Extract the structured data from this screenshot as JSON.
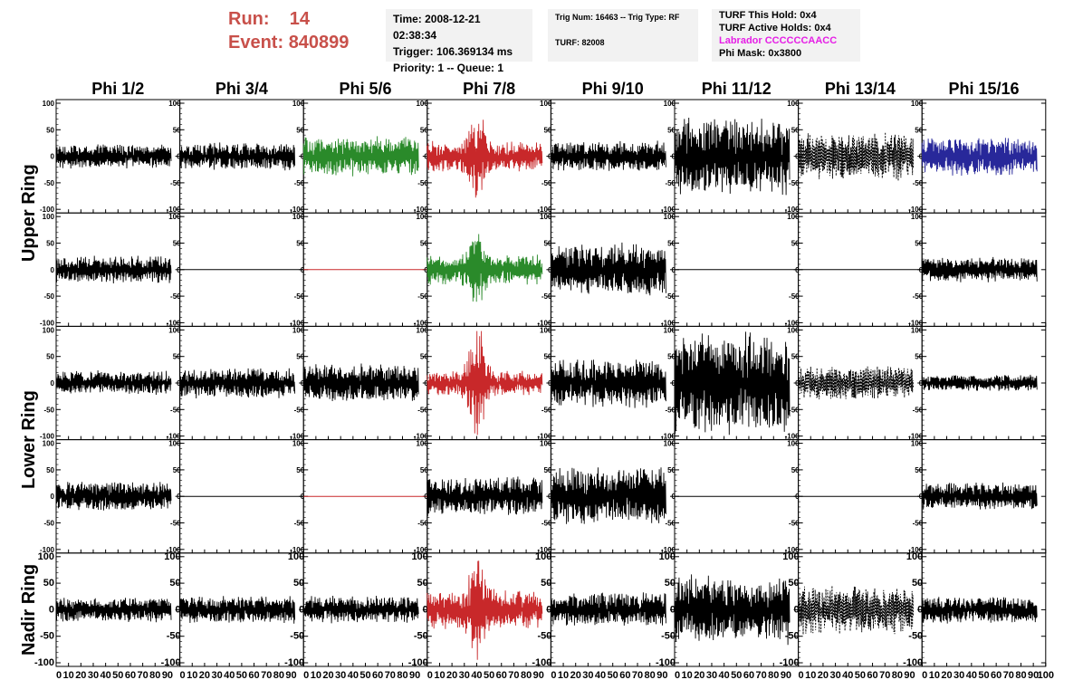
{
  "header": {
    "run_label": "Run:",
    "run_value": "14",
    "event_label": "Event:",
    "event_value": "840899",
    "time_line": "Time: 2008-12-21 02:38:34",
    "trigger_line": "Trigger: 106.369134 ms",
    "priority_line": "Priority: 1 -- Queue: 1",
    "trig_num_line": "Trig Num: 16463 -- Trig Type: RF",
    "turf_line": "TURF: 82008",
    "turf_hold_line": "TURF This Hold: 0x4",
    "turf_active_line": "TURF Active Holds: 0x4",
    "labrador_line": "Labrador CCCCCCAACC",
    "phi_mask_line": "Phi Mask: 0x3800"
  },
  "chart_data": {
    "type": "line",
    "columns": [
      "Phi 1/2",
      "Phi 3/4",
      "Phi 5/6",
      "Phi 7/8",
      "Phi 9/10",
      "Phi 11/12",
      "Phi 13/14",
      "Phi 15/16"
    ],
    "ring_labels": [
      "Upper Ring",
      "Lower Ring",
      "Nadir Ring"
    ],
    "x_ticks": [
      "0",
      "10",
      "20",
      "30",
      "40",
      "50",
      "60",
      "70",
      "80",
      "90",
      "100"
    ],
    "y_ticks": [
      "-100",
      "-50",
      "0",
      "50",
      "100"
    ],
    "xlim": [
      0,
      100
    ],
    "ylim": [
      -100,
      100
    ],
    "colors": {
      "black": "#000000",
      "green": "#2a8a2a",
      "red": "#c8282a",
      "blue": "#28289a"
    },
    "panels": [
      [
        {
          "amp": 18,
          "color": "black",
          "style": "solid",
          "burst": 0
        },
        {
          "amp": 20,
          "color": "black",
          "style": "solid",
          "burst": 0
        },
        {
          "amp": 30,
          "color": "green",
          "style": "solid",
          "burst": 0
        },
        {
          "amp": 22,
          "color": "red",
          "style": "solid",
          "burst": 55
        },
        {
          "amp": 22,
          "color": "black",
          "style": "solid",
          "burst": 0
        },
        {
          "amp": 55,
          "color": "black",
          "style": "solid",
          "burst": 0
        },
        {
          "amp": 35,
          "color": "black",
          "style": "dashed",
          "burst": 0
        },
        {
          "amp": 28,
          "color": "blue",
          "style": "solid",
          "burst": 0
        }
      ],
      [
        {
          "amp": 20,
          "color": "black",
          "style": "solid",
          "burst": 0
        },
        {
          "amp": 0,
          "color": "black",
          "style": "solid",
          "burst": 0
        },
        {
          "amp": 0,
          "color": "red",
          "style": "solid",
          "burst": 0
        },
        {
          "amp": 22,
          "color": "green",
          "style": "solid",
          "burst": 35
        },
        {
          "amp": 38,
          "color": "black",
          "style": "solid",
          "burst": 0
        },
        {
          "amp": 0,
          "color": "black",
          "style": "solid",
          "burst": 0
        },
        {
          "amp": 0,
          "color": "black",
          "style": "solid",
          "burst": 0
        },
        {
          "amp": 18,
          "color": "black",
          "style": "solid",
          "burst": 0
        }
      ],
      [
        {
          "amp": 18,
          "color": "black",
          "style": "solid",
          "burst": 0
        },
        {
          "amp": 22,
          "color": "black",
          "style": "solid",
          "burst": 0
        },
        {
          "amp": 28,
          "color": "black",
          "style": "solid",
          "burst": 0
        },
        {
          "amp": 18,
          "color": "red",
          "style": "solid",
          "burst": 80
        },
        {
          "amp": 35,
          "color": "black",
          "style": "solid",
          "burst": 0
        },
        {
          "amp": 75,
          "color": "black",
          "style": "solid",
          "burst": 0
        },
        {
          "amp": 25,
          "color": "black",
          "style": "dashed",
          "burst": 0
        },
        {
          "amp": 12,
          "color": "black",
          "style": "solid",
          "burst": 0
        }
      ],
      [
        {
          "amp": 22,
          "color": "black",
          "style": "solid",
          "burst": 0
        },
        {
          "amp": 0,
          "color": "black",
          "style": "solid",
          "burst": 0
        },
        {
          "amp": 0,
          "color": "red",
          "style": "solid",
          "burst": 0
        },
        {
          "amp": 28,
          "color": "black",
          "style": "solid",
          "burst": 0
        },
        {
          "amp": 42,
          "color": "black",
          "style": "solid",
          "burst": 0
        },
        {
          "amp": 0,
          "color": "black",
          "style": "solid",
          "burst": 0
        },
        {
          "amp": 0,
          "color": "black",
          "style": "solid",
          "burst": 0
        },
        {
          "amp": 20,
          "color": "black",
          "style": "solid",
          "burst": 0
        }
      ],
      [
        {
          "amp": 18,
          "color": "black",
          "style": "solid",
          "burst": 0
        },
        {
          "amp": 20,
          "color": "black",
          "style": "solid",
          "burst": 0
        },
        {
          "amp": 20,
          "color": "black",
          "style": "solid",
          "burst": 0
        },
        {
          "amp": 28,
          "color": "red",
          "style": "solid",
          "burst": 60
        },
        {
          "amp": 25,
          "color": "black",
          "style": "solid",
          "burst": 0
        },
        {
          "amp": 50,
          "color": "black",
          "style": "solid",
          "burst": 0
        },
        {
          "amp": 35,
          "color": "black",
          "style": "dashed",
          "burst": 0
        },
        {
          "amp": 20,
          "color": "black",
          "style": "solid",
          "burst": 0
        }
      ]
    ]
  }
}
